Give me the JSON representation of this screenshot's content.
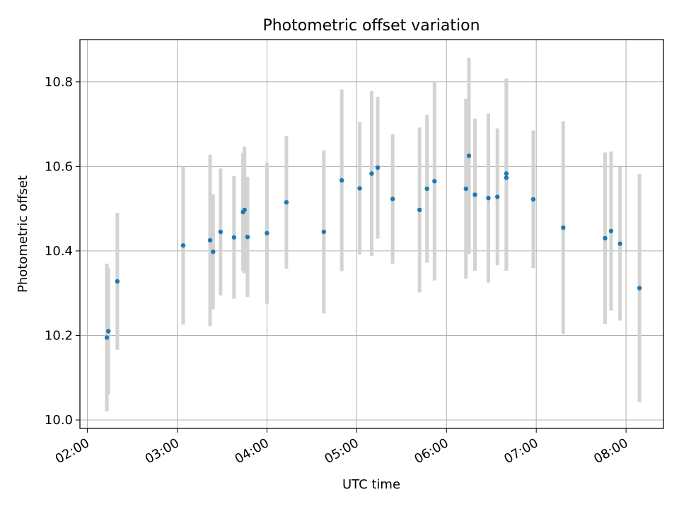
{
  "chart_data": {
    "type": "scatter",
    "title": "Photometric offset variation",
    "xlabel": "UTC time",
    "ylabel": "Photometric offset",
    "x_ticks": [
      "02:00",
      "03:00",
      "04:00",
      "05:00",
      "06:00",
      "07:00",
      "08:00"
    ],
    "y_ticks": [
      "10.0",
      "10.2",
      "10.4",
      "10.6",
      "10.8"
    ],
    "xlim": [
      "01:55",
      "08:25"
    ],
    "ylim": [
      9.98,
      10.9
    ],
    "grid": true,
    "colors": {
      "point": "#1f77b4",
      "errorbar": "#d3d3d3",
      "grid": "#b0b0b0"
    },
    "series": [
      {
        "points": [
          {
            "x": "02:13",
            "y": 10.195,
            "err": 0.175
          },
          {
            "x": "02:14",
            "y": 10.21,
            "err": 0.15
          },
          {
            "x": "02:20",
            "y": 10.328,
            "err": 0.162
          },
          {
            "x": "03:04",
            "y": 10.413,
            "err": 0.187
          },
          {
            "x": "03:22",
            "y": 10.425,
            "err": 0.203
          },
          {
            "x": "03:24",
            "y": 10.398,
            "err": 0.136
          },
          {
            "x": "03:29",
            "y": 10.445,
            "err": 0.15
          },
          {
            "x": "03:38",
            "y": 10.432,
            "err": 0.145
          },
          {
            "x": "03:44",
            "y": 10.492,
            "err": 0.14
          },
          {
            "x": "03:45",
            "y": 10.497,
            "err": 0.15
          },
          {
            "x": "03:47",
            "y": 10.433,
            "err": 0.142
          },
          {
            "x": "04:00",
            "y": 10.442,
            "err": 0.167
          },
          {
            "x": "04:13",
            "y": 10.515,
            "err": 0.157
          },
          {
            "x": "04:38",
            "y": 10.445,
            "err": 0.193
          },
          {
            "x": "04:50",
            "y": 10.567,
            "err": 0.215
          },
          {
            "x": "05:02",
            "y": 10.548,
            "err": 0.157
          },
          {
            "x": "05:10",
            "y": 10.583,
            "err": 0.195
          },
          {
            "x": "05:14",
            "y": 10.597,
            "err": 0.168
          },
          {
            "x": "05:24",
            "y": 10.523,
            "err": 0.153
          },
          {
            "x": "05:42",
            "y": 10.497,
            "err": 0.195
          },
          {
            "x": "05:47",
            "y": 10.547,
            "err": 0.175
          },
          {
            "x": "05:52",
            "y": 10.565,
            "err": 0.235
          },
          {
            "x": "06:13",
            "y": 10.547,
            "err": 0.213
          },
          {
            "x": "06:15",
            "y": 10.625,
            "err": 0.232
          },
          {
            "x": "06:19",
            "y": 10.533,
            "err": 0.18
          },
          {
            "x": "06:28",
            "y": 10.525,
            "err": 0.2
          },
          {
            "x": "06:34",
            "y": 10.528,
            "err": 0.162
          },
          {
            "x": "06:40",
            "y": 10.583,
            "err": 0.225
          },
          {
            "x": "06:40",
            "y": 10.573,
            "err": 0.22
          },
          {
            "x": "06:58",
            "y": 10.522,
            "err": 0.163
          },
          {
            "x": "07:18",
            "y": 10.455,
            "err": 0.252
          },
          {
            "x": "07:46",
            "y": 10.43,
            "err": 0.203
          },
          {
            "x": "07:50",
            "y": 10.447,
            "err": 0.188
          },
          {
            "x": "07:56",
            "y": 10.417,
            "err": 0.182
          },
          {
            "x": "08:09",
            "y": 10.312,
            "err": 0.27
          }
        ]
      }
    ]
  }
}
